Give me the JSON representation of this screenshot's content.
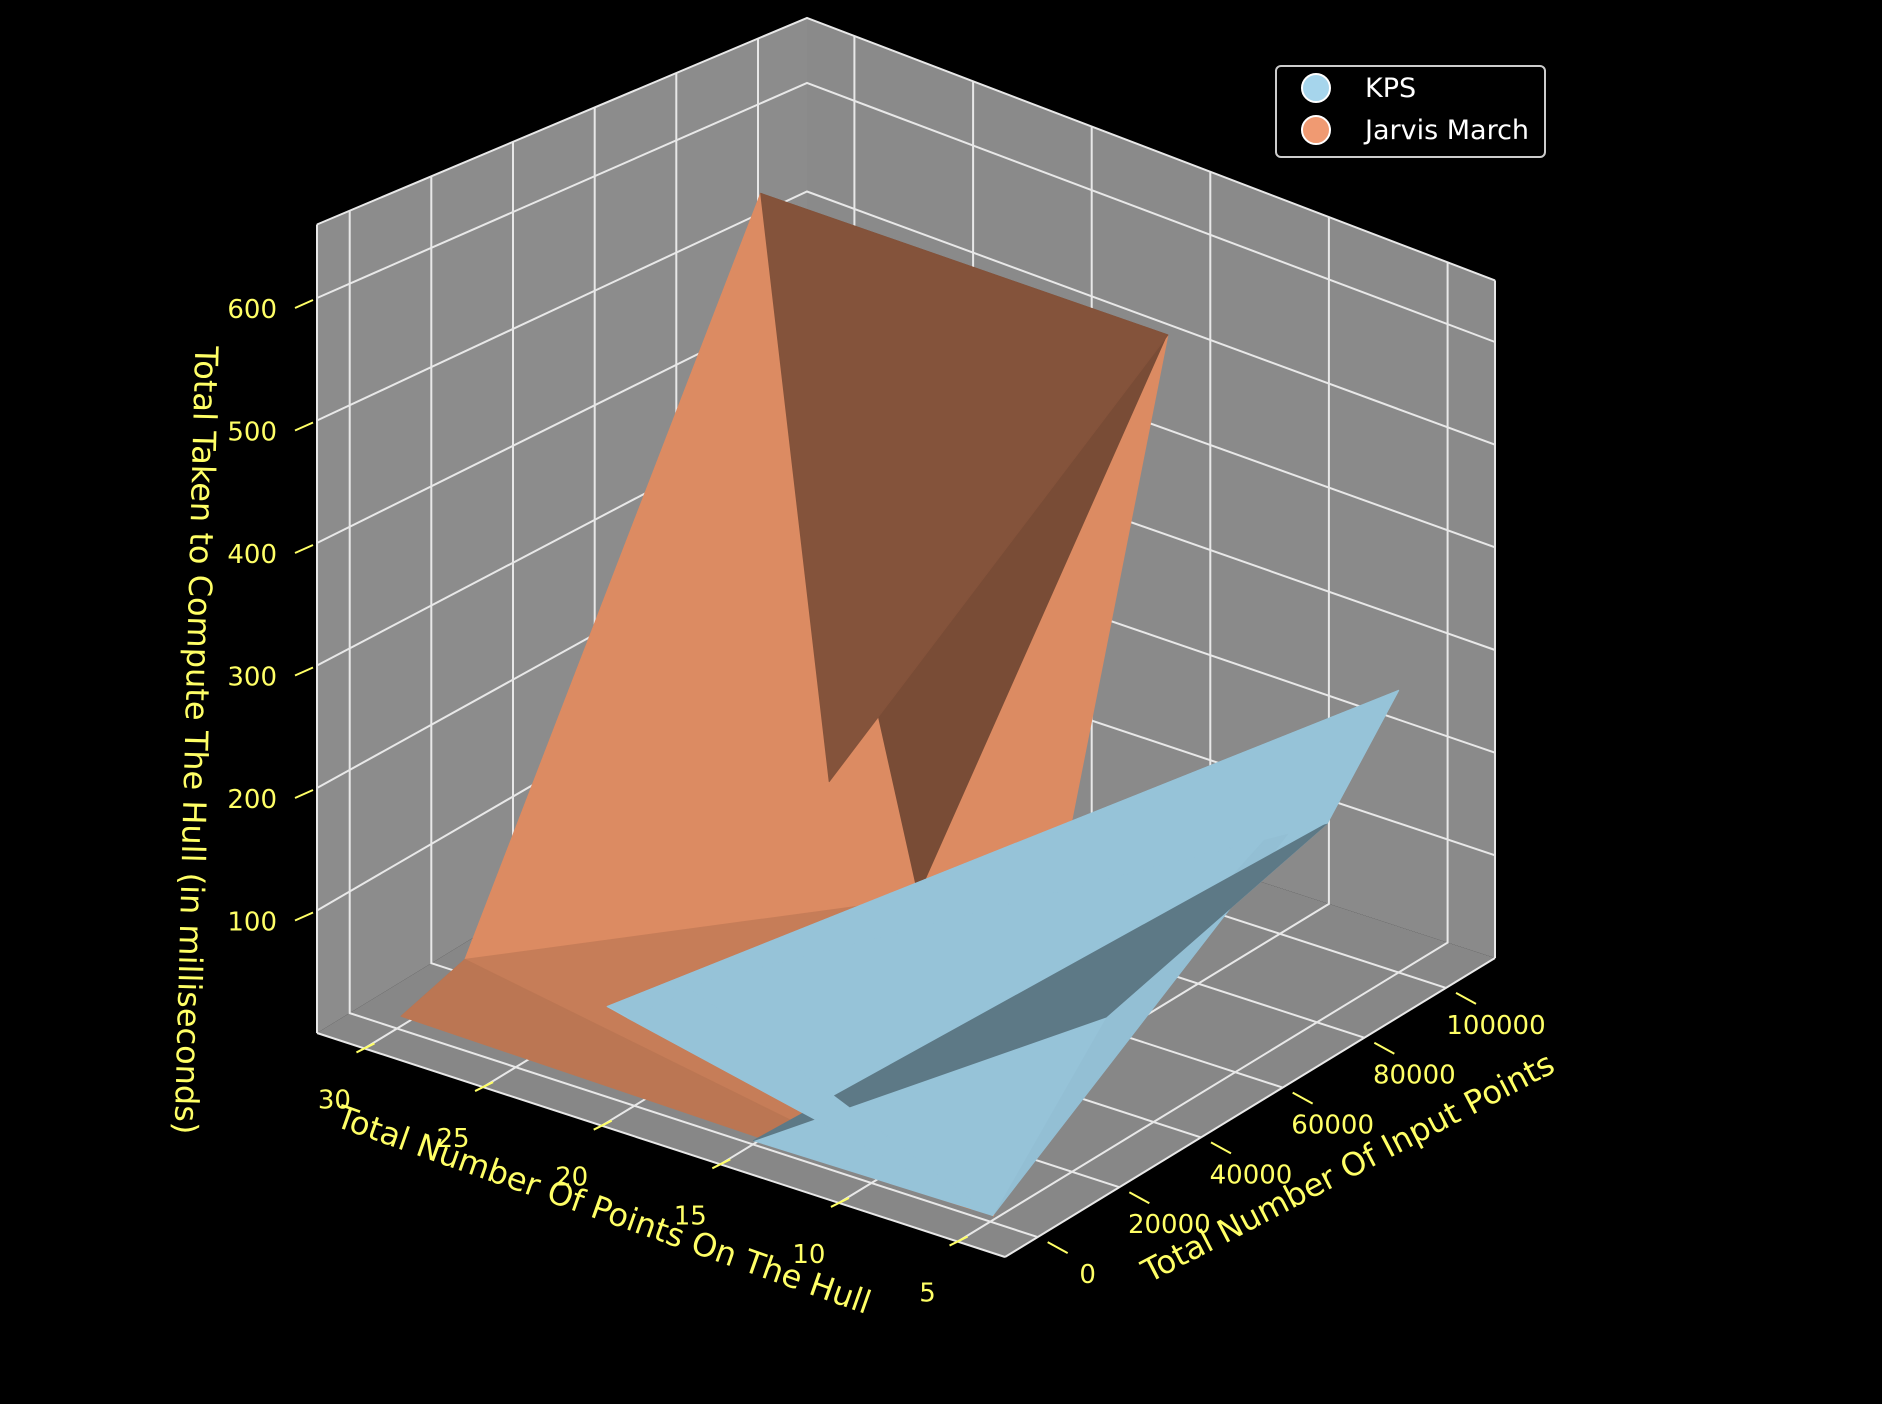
{
  "chart_data": {
    "type": "surface3d",
    "title": "",
    "xlabel": "Total Number Of Points On The Hull",
    "ylabel": "Total Number Of Input Points",
    "zlabel": "Total Taken to Compute The Hull (in milliseconds)",
    "x_ticks": [
      5,
      10,
      15,
      20,
      25,
      30
    ],
    "y_ticks": [
      0,
      20000,
      40000,
      60000,
      80000,
      100000
    ],
    "z_ticks": [
      100,
      200,
      300,
      400,
      500,
      600
    ],
    "x_tick_labels": [
      "5",
      "10",
      "15",
      "20",
      "25",
      "30"
    ],
    "y_tick_labels": [
      "0",
      "20000",
      "40000",
      "60000",
      "80000",
      "100000"
    ],
    "z_tick_labels": [
      "100",
      "200",
      "300",
      "400",
      "500",
      "600"
    ],
    "xlim": [
      3,
      32
    ],
    "ylim": [
      -8000,
      112000
    ],
    "zlim": [
      0,
      660
    ],
    "grid": true,
    "legend_position": "top-right",
    "legend": [
      {
        "label": "KPS",
        "color": "#a6d5ec"
      },
      {
        "label": "Jarvis March",
        "color": "#f09a72"
      }
    ],
    "series": [
      {
        "name": "Jarvis March",
        "color": "#dc8b62",
        "points": [
          {
            "x": 29,
            "y": 100000,
            "z": 5
          },
          {
            "x": 28,
            "y": 5000,
            "z": 60
          },
          {
            "x": 30,
            "y": 1000,
            "z": 8
          },
          {
            "x": 25,
            "y": 60000,
            "z": 640
          },
          {
            "x": 13,
            "y": 90000,
            "z": 560
          },
          {
            "x": 17,
            "y": 52000,
            "z": 90
          },
          {
            "x": 5,
            "y": 800,
            "z": 3
          },
          {
            "x": 6,
            "y": 1000,
            "z": 2
          }
        ]
      },
      {
        "name": "KPS",
        "color": "#96c3d8",
        "points": [
          {
            "x": 22,
            "y": 5000,
            "z": 60
          },
          {
            "x": 5,
            "y": 600,
            "z": 4
          },
          {
            "x": 5,
            "y": 100000,
            "z": 270
          },
          {
            "x": 7,
            "y": 40000,
            "z": 80
          },
          {
            "x": 8,
            "y": 100000,
            "z": 120
          },
          {
            "x": 22,
            "y": 10000,
            "z": 40
          },
          {
            "x": 15,
            "y": 100,
            "z": 3
          },
          {
            "x": 21,
            "y": 20000,
            "z": 50
          }
        ]
      }
    ]
  }
}
